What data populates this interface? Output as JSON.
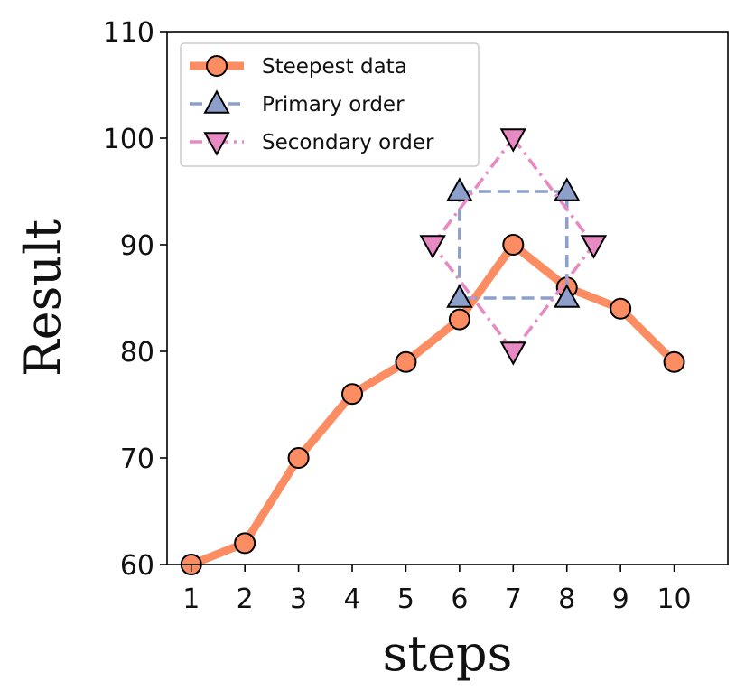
{
  "chart_data": {
    "type": "line",
    "xlabel": "steps",
    "ylabel": "Result",
    "xlim": [
      0.55,
      11.0
    ],
    "ylim": [
      60,
      110
    ],
    "xticks": [
      1,
      2,
      3,
      4,
      5,
      6,
      7,
      8,
      9,
      10
    ],
    "yticks": [
      60,
      70,
      80,
      90,
      100,
      110
    ],
    "grid": false,
    "legend_position": "top-left",
    "series": [
      {
        "name": "Steepest data",
        "style": "solid",
        "marker": "circle",
        "color": "#FC8D62",
        "x": [
          1,
          2,
          3,
          4,
          5,
          6,
          7,
          8,
          9,
          10
        ],
        "y": [
          60,
          62,
          70,
          76,
          79,
          83,
          90,
          86,
          84,
          79
        ]
      },
      {
        "name": "Primary order",
        "style": "dashed",
        "marker": "triangle-up",
        "color": "#8DA0CB",
        "closed": true,
        "x": [
          6,
          8,
          8,
          6
        ],
        "y": [
          95,
          95,
          85,
          85
        ]
      },
      {
        "name": "Secondary order",
        "style": "dashdot",
        "marker": "triangle-down",
        "color": "#E78AC3",
        "closed": true,
        "x": [
          7,
          8.5,
          7,
          5.5
        ],
        "y": [
          100,
          90,
          80,
          90
        ]
      }
    ]
  }
}
